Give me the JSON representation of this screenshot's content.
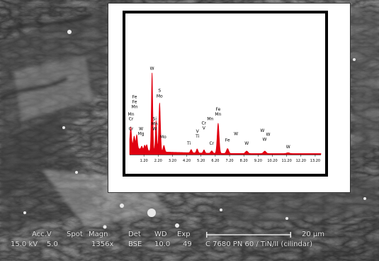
{
  "image": {
    "subject": "SEM micrograph of worn TiN coated surface with EDS spectrum inset",
    "colors": {
      "spectrum": "#e00010",
      "frame": "#000000",
      "databar_text": "#e6e6e6"
    }
  },
  "databar": {
    "headers": [
      "Acc.V",
      "Spot",
      "Magn",
      "Det",
      "WD",
      "Exp"
    ],
    "values": [
      "15.0 kV",
      "5.0",
      "1356x",
      "BSE",
      "10.0",
      "49"
    ],
    "scale_label": "20 µm",
    "sample_label": "C 7680 PN 60 / TiN/II (cilindar)"
  },
  "chart_data": {
    "type": "area",
    "xlim": [
      0.2,
      13.6
    ],
    "ylim": [
      0,
      100
    ],
    "ticks": [
      "1.20",
      "2.20",
      "3.20",
      "4.20",
      "5.20",
      "6.20",
      "7.20",
      "8.20",
      "9.20",
      "10.20",
      "11.20",
      "12.20",
      "13.20"
    ],
    "tick_values": [
      1.2,
      2.2,
      3.2,
      4.2,
      5.2,
      6.2,
      7.2,
      8.2,
      9.2,
      10.2,
      11.2,
      12.2,
      13.2
    ],
    "peaks": [
      {
        "x": 0.28,
        "y": 22,
        "w": 0.05
      },
      {
        "x": 0.52,
        "y": 13,
        "w": 0.06
      },
      {
        "x": 0.7,
        "y": 16,
        "w": 0.05
      },
      {
        "x": 1.05,
        "y": 4,
        "w": 0.05
      },
      {
        "x": 1.25,
        "y": 6,
        "w": 0.05
      },
      {
        "x": 1.4,
        "y": 7,
        "w": 0.05
      },
      {
        "x": 1.77,
        "y": 97,
        "w": 0.05
      },
      {
        "x": 2.05,
        "y": 38,
        "w": 0.05
      },
      {
        "x": 2.3,
        "y": 60,
        "w": 0.06
      },
      {
        "x": 2.6,
        "y": 8,
        "w": 0.06
      },
      {
        "x": 4.51,
        "y": 4,
        "w": 0.06
      },
      {
        "x": 4.93,
        "y": 5,
        "w": 0.06
      },
      {
        "x": 5.41,
        "y": 4,
        "w": 0.06
      },
      {
        "x": 5.95,
        "y": 3,
        "w": 0.07
      },
      {
        "x": 6.4,
        "y": 37,
        "w": 0.07
      },
      {
        "x": 7.06,
        "y": 6,
        "w": 0.08
      },
      {
        "x": 8.4,
        "y": 3,
        "w": 0.09
      },
      {
        "x": 9.67,
        "y": 3,
        "w": 0.09
      },
      {
        "x": 11.3,
        "y": 1,
        "w": 0.1
      }
    ],
    "peak_labels": [
      {
        "text": "W",
        "x": 1.77,
        "y": 104
      },
      {
        "text": "S",
        "x": 2.3,
        "y": 77
      },
      {
        "text": "Mo",
        "x": 2.3,
        "y": 70
      },
      {
        "text": "Fe",
        "x": 0.55,
        "y": 69
      },
      {
        "text": "Fe",
        "x": 0.55,
        "y": 63
      },
      {
        "text": "Mn",
        "x": 0.55,
        "y": 57
      },
      {
        "text": "Mn",
        "x": 0.3,
        "y": 48
      },
      {
        "text": "Cr",
        "x": 0.3,
        "y": 42
      },
      {
        "text": "Cr",
        "x": 0.3,
        "y": 30
      },
      {
        "text": "W",
        "x": 1.0,
        "y": 30
      },
      {
        "text": "Mg",
        "x": 1.0,
        "y": 24
      },
      {
        "text": "Si",
        "x": 1.95,
        "y": 42
      },
      {
        "text": "Mn",
        "x": 1.95,
        "y": 36
      },
      {
        "text": "W",
        "x": 1.95,
        "y": 30
      },
      {
        "text": "Mo",
        "x": 2.55,
        "y": 20
      },
      {
        "text": "V",
        "x": 4.95,
        "y": 27
      },
      {
        "text": "Ti",
        "x": 4.95,
        "y": 21
      },
      {
        "text": "Ti",
        "x": 4.35,
        "y": 12
      },
      {
        "text": "Cr",
        "x": 5.4,
        "y": 37
      },
      {
        "text": "V",
        "x": 5.4,
        "y": 31
      },
      {
        "text": "Cr",
        "x": 5.95,
        "y": 12
      },
      {
        "text": "Fe",
        "x": 6.4,
        "y": 54
      },
      {
        "text": "Mn",
        "x": 6.4,
        "y": 48
      },
      {
        "text": "Mn",
        "x": 5.85,
        "y": 42
      },
      {
        "text": "W",
        "x": 7.65,
        "y": 24
      },
      {
        "text": "Fe",
        "x": 7.06,
        "y": 16
      },
      {
        "text": "W",
        "x": 8.4,
        "y": 12
      },
      {
        "text": "W",
        "x": 9.5,
        "y": 28
      },
      {
        "text": "W",
        "x": 9.9,
        "y": 23
      },
      {
        "text": "W",
        "x": 9.65,
        "y": 17
      },
      {
        "text": "W",
        "x": 11.3,
        "y": 8
      }
    ]
  }
}
